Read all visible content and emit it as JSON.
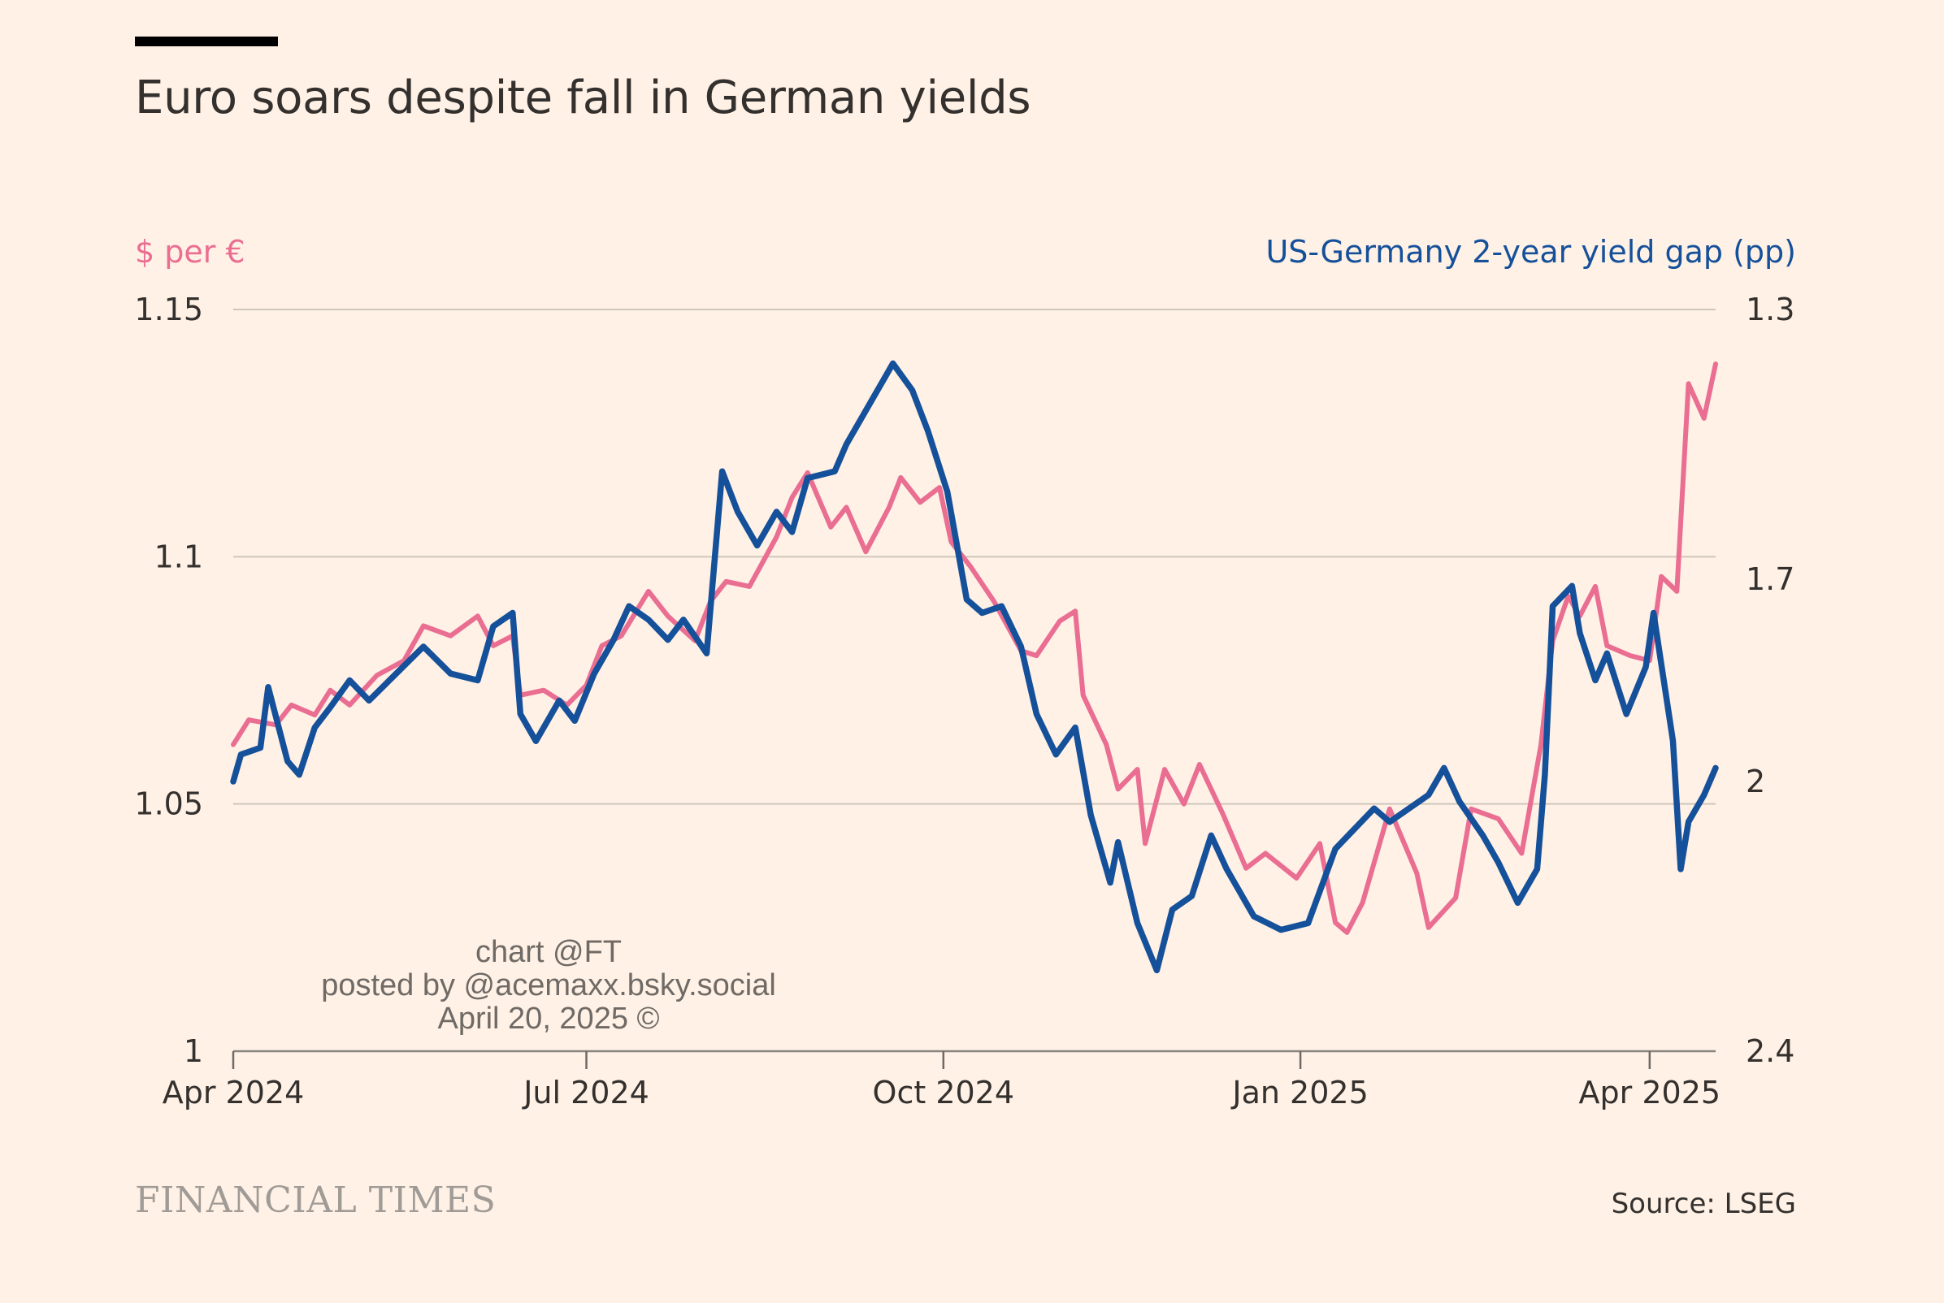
{
  "colors": {
    "eur": "#ea6d92",
    "gap": "#15509a",
    "text": "#33302e",
    "grid": "#cfc6bc"
  },
  "header": {
    "title": "Euro soars despite fall in German yields",
    "left_axis_title": "$ per €",
    "right_axis_title": "US-Germany 2-year yield gap (pp)"
  },
  "watermark": {
    "line1": "chart @FT",
    "line2": "posted by @acemaxx.bsky.social",
    "line3": "April 20, 2025 ©"
  },
  "footer": {
    "brand": "FINANCIAL TIMES",
    "source": "Source: LSEG"
  },
  "chart_data": {
    "type": "line",
    "x_range": [
      "2024-04-01",
      "2025-04-18"
    ],
    "x_ticks": [
      {
        "date": "2024-04-01",
        "label": "Apr 2024"
      },
      {
        "date": "2024-07-01",
        "label": "Jul 2024"
      },
      {
        "date": "2024-10-01",
        "label": "Oct 2024"
      },
      {
        "date": "2025-01-01",
        "label": "Jan 2025"
      },
      {
        "date": "2025-04-01",
        "label": "Apr 2025"
      }
    ],
    "y_left": {
      "label": "$ per €",
      "range": [
        1.0,
        1.15
      ],
      "ticks": [
        1,
        1.05,
        1.1,
        1.15
      ],
      "tick_labels": [
        "1",
        "1.05",
        "1.1",
        "1.15"
      ]
    },
    "y_right": {
      "label": "US-Germany 2-year yield gap (pp)",
      "range": [
        2.4,
        1.3
      ],
      "inverted": true,
      "ticks": [
        1.3,
        1.7,
        2,
        2.4
      ],
      "tick_labels": [
        "1.3",
        "1.7",
        "2",
        "2.4"
      ]
    },
    "grid": "horizontal",
    "series": [
      {
        "name": "$ per €",
        "axis": "left",
        "points": [
          [
            "2024-04-01",
            1.062
          ],
          [
            "2024-04-05",
            1.067
          ],
          [
            "2024-04-12",
            1.066
          ],
          [
            "2024-04-16",
            1.07
          ],
          [
            "2024-04-22",
            1.068
          ],
          [
            "2024-04-26",
            1.073
          ],
          [
            "2024-05-01",
            1.07
          ],
          [
            "2024-05-08",
            1.076
          ],
          [
            "2024-05-15",
            1.079
          ],
          [
            "2024-05-20",
            1.086
          ],
          [
            "2024-05-27",
            1.084
          ],
          [
            "2024-06-03",
            1.088
          ],
          [
            "2024-06-07",
            1.082
          ],
          [
            "2024-06-12",
            1.084
          ],
          [
            "2024-06-14",
            1.072
          ],
          [
            "2024-06-20",
            1.073
          ],
          [
            "2024-06-26",
            1.07
          ],
          [
            "2024-07-01",
            1.074
          ],
          [
            "2024-07-05",
            1.082
          ],
          [
            "2024-07-10",
            1.084
          ],
          [
            "2024-07-17",
            1.093
          ],
          [
            "2024-07-22",
            1.088
          ],
          [
            "2024-07-29",
            1.083
          ],
          [
            "2024-08-02",
            1.091
          ],
          [
            "2024-08-06",
            1.095
          ],
          [
            "2024-08-12",
            1.094
          ],
          [
            "2024-08-19",
            1.104
          ],
          [
            "2024-08-23",
            1.112
          ],
          [
            "2024-08-27",
            1.117
          ],
          [
            "2024-09-02",
            1.106
          ],
          [
            "2024-09-06",
            1.11
          ],
          [
            "2024-09-11",
            1.101
          ],
          [
            "2024-09-17",
            1.11
          ],
          [
            "2024-09-20",
            1.116
          ],
          [
            "2024-09-25",
            1.111
          ],
          [
            "2024-09-30",
            1.114
          ],
          [
            "2024-10-03",
            1.103
          ],
          [
            "2024-10-08",
            1.098
          ],
          [
            "2024-10-14",
            1.091
          ],
          [
            "2024-10-21",
            1.081
          ],
          [
            "2024-10-25",
            1.08
          ],
          [
            "2024-10-31",
            1.087
          ],
          [
            "2024-11-04",
            1.089
          ],
          [
            "2024-11-06",
            1.072
          ],
          [
            "2024-11-12",
            1.062
          ],
          [
            "2024-11-15",
            1.053
          ],
          [
            "2024-11-20",
            1.057
          ],
          [
            "2024-11-22",
            1.042
          ],
          [
            "2024-11-27",
            1.057
          ],
          [
            "2024-12-02",
            1.05
          ],
          [
            "2024-12-06",
            1.058
          ],
          [
            "2024-12-12",
            1.048
          ],
          [
            "2024-12-18",
            1.037
          ],
          [
            "2024-12-23",
            1.04
          ],
          [
            "2024-12-31",
            1.035
          ],
          [
            "2025-01-06",
            1.042
          ],
          [
            "2025-01-10",
            1.026
          ],
          [
            "2025-01-13",
            1.024
          ],
          [
            "2025-01-17",
            1.03
          ],
          [
            "2025-01-24",
            1.049
          ],
          [
            "2025-01-31",
            1.036
          ],
          [
            "2025-02-03",
            1.025
          ],
          [
            "2025-02-10",
            1.031
          ],
          [
            "2025-02-14",
            1.049
          ],
          [
            "2025-02-21",
            1.047
          ],
          [
            "2025-02-27",
            1.04
          ],
          [
            "2025-03-04",
            1.062
          ],
          [
            "2025-03-07",
            1.083
          ],
          [
            "2025-03-11",
            1.092
          ],
          [
            "2025-03-14",
            1.088
          ],
          [
            "2025-03-18",
            1.094
          ],
          [
            "2025-03-21",
            1.082
          ],
          [
            "2025-03-27",
            1.08
          ],
          [
            "2025-04-01",
            1.079
          ],
          [
            "2025-04-04",
            1.096
          ],
          [
            "2025-04-08",
            1.093
          ],
          [
            "2025-04-11",
            1.135
          ],
          [
            "2025-04-15",
            1.128
          ],
          [
            "2025-04-18",
            1.139
          ]
        ]
      },
      {
        "name": "US-Germany 2-year yield gap (pp)",
        "axis": "right",
        "points": [
          [
            "2024-04-01",
            2.0
          ],
          [
            "2024-04-03",
            1.96
          ],
          [
            "2024-04-08",
            1.95
          ],
          [
            "2024-04-10",
            1.86
          ],
          [
            "2024-04-15",
            1.97
          ],
          [
            "2024-04-18",
            1.99
          ],
          [
            "2024-04-22",
            1.92
          ],
          [
            "2024-04-26",
            1.89
          ],
          [
            "2024-05-01",
            1.85
          ],
          [
            "2024-05-06",
            1.88
          ],
          [
            "2024-05-13",
            1.84
          ],
          [
            "2024-05-20",
            1.8
          ],
          [
            "2024-05-27",
            1.84
          ],
          [
            "2024-06-03",
            1.85
          ],
          [
            "2024-06-07",
            1.77
          ],
          [
            "2024-06-12",
            1.75
          ],
          [
            "2024-06-14",
            1.9
          ],
          [
            "2024-06-18",
            1.94
          ],
          [
            "2024-06-24",
            1.88
          ],
          [
            "2024-06-28",
            1.91
          ],
          [
            "2024-07-03",
            1.84
          ],
          [
            "2024-07-08",
            1.79
          ],
          [
            "2024-07-12",
            1.74
          ],
          [
            "2024-07-17",
            1.76
          ],
          [
            "2024-07-22",
            1.79
          ],
          [
            "2024-07-26",
            1.76
          ],
          [
            "2024-08-01",
            1.81
          ],
          [
            "2024-08-05",
            1.54
          ],
          [
            "2024-08-09",
            1.6
          ],
          [
            "2024-08-14",
            1.65
          ],
          [
            "2024-08-19",
            1.6
          ],
          [
            "2024-08-23",
            1.63
          ],
          [
            "2024-08-27",
            1.55
          ],
          [
            "2024-09-03",
            1.54
          ],
          [
            "2024-09-06",
            1.5
          ],
          [
            "2024-09-11",
            1.45
          ],
          [
            "2024-09-16",
            1.4
          ],
          [
            "2024-09-18",
            1.38
          ],
          [
            "2024-09-23",
            1.42
          ],
          [
            "2024-09-27",
            1.48
          ],
          [
            "2024-10-02",
            1.57
          ],
          [
            "2024-10-07",
            1.73
          ],
          [
            "2024-10-11",
            1.75
          ],
          [
            "2024-10-16",
            1.74
          ],
          [
            "2024-10-21",
            1.8
          ],
          [
            "2024-10-25",
            1.9
          ],
          [
            "2024-10-30",
            1.96
          ],
          [
            "2024-11-04",
            1.92
          ],
          [
            "2024-11-08",
            2.05
          ],
          [
            "2024-11-13",
            2.15
          ],
          [
            "2024-11-15",
            2.09
          ],
          [
            "2024-11-20",
            2.21
          ],
          [
            "2024-11-25",
            2.28
          ],
          [
            "2024-11-29",
            2.19
          ],
          [
            "2024-12-04",
            2.17
          ],
          [
            "2024-12-09",
            2.08
          ],
          [
            "2024-12-13",
            2.13
          ],
          [
            "2024-12-20",
            2.2
          ],
          [
            "2024-12-27",
            2.22
          ],
          [
            "2025-01-03",
            2.21
          ],
          [
            "2025-01-10",
            2.1
          ],
          [
            "2025-01-15",
            2.07
          ],
          [
            "2025-01-20",
            2.04
          ],
          [
            "2025-01-24",
            2.06
          ],
          [
            "2025-02-03",
            2.02
          ],
          [
            "2025-02-07",
            1.98
          ],
          [
            "2025-02-11",
            2.03
          ],
          [
            "2025-02-17",
            2.08
          ],
          [
            "2025-02-21",
            2.12
          ],
          [
            "2025-02-26",
            2.18
          ],
          [
            "2025-03-03",
            2.13
          ],
          [
            "2025-03-05",
            1.99
          ],
          [
            "2025-03-07",
            1.74
          ],
          [
            "2025-03-12",
            1.71
          ],
          [
            "2025-03-14",
            1.78
          ],
          [
            "2025-03-18",
            1.85
          ],
          [
            "2025-03-21",
            1.81
          ],
          [
            "2025-03-26",
            1.9
          ],
          [
            "2025-03-31",
            1.83
          ],
          [
            "2025-04-02",
            1.75
          ],
          [
            "2025-04-07",
            1.94
          ],
          [
            "2025-04-09",
            2.13
          ],
          [
            "2025-04-11",
            2.06
          ],
          [
            "2025-04-15",
            2.02
          ],
          [
            "2025-04-18",
            1.98
          ]
        ]
      }
    ]
  }
}
